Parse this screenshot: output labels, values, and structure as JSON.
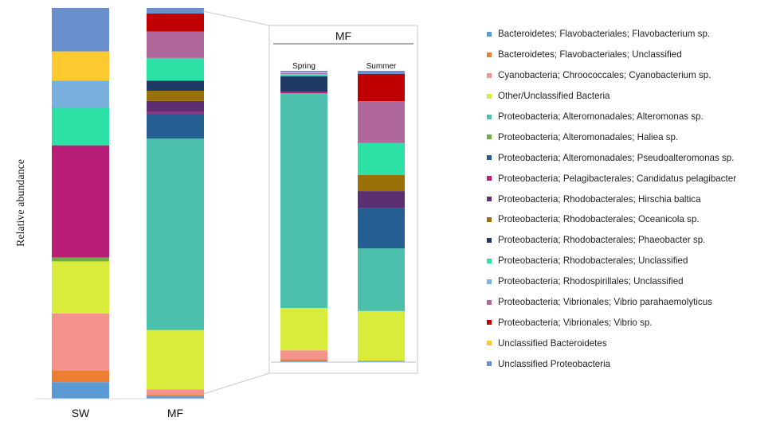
{
  "chart_data": {
    "type": "bar",
    "stacked": true,
    "normalized": true,
    "ylabel": "Relative abundance",
    "categories": [
      "SW",
      "MF"
    ],
    "inset": {
      "title": "MF",
      "categories": [
        "Spring",
        "Summer"
      ]
    },
    "series": [
      {
        "name": "Bacteroidetes; Flavobacteriales; Flavobacterium sp.",
        "color": "#5b9bd5",
        "values": [
          4.2,
          0.6
        ],
        "inset_values": [
          0.4,
          0.3
        ]
      },
      {
        "name": "Bacteroidetes; Flavobacteriales; Unclassified",
        "color": "#ed7d31",
        "values": [
          3.0,
          0.4
        ],
        "inset_values": [
          0.6,
          0.2
        ]
      },
      {
        "name": "Cyanobacteria; Chroococcales; Cyanobacterium sp.",
        "color": "#f4938e",
        "values": [
          14.4,
          1.4
        ],
        "inset_values": [
          3.0,
          0.0
        ]
      },
      {
        "name": "Other/Unclassified Bacteria",
        "color": "#d9ec3c",
        "values": [
          13.2,
          15.2
        ],
        "inset_values": [
          14.5,
          17.0
        ]
      },
      {
        "name": "Proteobacteria; Alteromonadales; Alteromonas sp.",
        "color": "#4dbfad",
        "values": [
          0.0,
          49.0
        ],
        "inset_values": [
          73.4,
          21.5
        ]
      },
      {
        "name": "Proteobacteria; Alteromonadales; Haliea sp.",
        "color": "#70ad47",
        "values": [
          1.0,
          0.0
        ],
        "inset_values": [
          0.0,
          0.0
        ]
      },
      {
        "name": "Proteobacteria; Alteromonadales; Pseudoalteromonas sp.",
        "color": "#255e91",
        "values": [
          0.0,
          6.4
        ],
        "inset_values": [
          0.0,
          13.8
        ]
      },
      {
        "name": "Proteobacteria; Pelagibacterales; Candidatus pelagibacter",
        "color": "#b81e76",
        "values": [
          28.4,
          0.4
        ],
        "inset_values": [
          0.6,
          0.0
        ]
      },
      {
        "name": "Proteobacteria; Rhodobacterales; Hirschia baltica",
        "color": "#5c2f72",
        "values": [
          0.0,
          2.8
        ],
        "inset_values": [
          0.0,
          5.8
        ]
      },
      {
        "name": "Proteobacteria; Rhodobacterales; Oceanicola sp.",
        "color": "#9a7009",
        "values": [
          0.0,
          2.6
        ],
        "inset_values": [
          0.0,
          5.5
        ]
      },
      {
        "name": "Proteobacteria; Rhodobacterales; Phaeobacter sp.",
        "color": "#1f3864",
        "values": [
          0.0,
          2.6
        ],
        "inset_values": [
          5.2,
          0.0
        ]
      },
      {
        "name": "Proteobacteria; Rhodobacterales; Unclassified",
        "color": "#2de0a5",
        "values": [
          9.6,
          5.8
        ],
        "inset_values": [
          0.6,
          11.0
        ]
      },
      {
        "name": "Proteobacteria; Rhodospirillales; Unclassified",
        "color": "#7ab0de",
        "values": [
          6.8,
          0.0
        ],
        "inset_values": [
          0.2,
          0.0
        ]
      },
      {
        "name": "Proteobacteria; Vibrionales; Vibrio parahaemolyticus",
        "color": "#b0689c",
        "values": [
          0.0,
          6.8
        ],
        "inset_values": [
          0.3,
          14.3
        ]
      },
      {
        "name": "Proteobacteria; Vibrionales; Vibrio sp.",
        "color": "#c00000",
        "values": [
          0.0,
          4.6
        ],
        "inset_values": [
          0.0,
          9.3
        ]
      },
      {
        "name": "Unclassified Bacteroidetes",
        "color": "#fdc830",
        "values": [
          7.4,
          0.0
        ],
        "inset_values": [
          0.3,
          0.0
        ]
      },
      {
        "name": "Unclassified Proteobacteria",
        "color": "#6a8fcf",
        "values": [
          11.0,
          1.4
        ],
        "inset_values": [
          0.5,
          1.1
        ]
      }
    ]
  }
}
